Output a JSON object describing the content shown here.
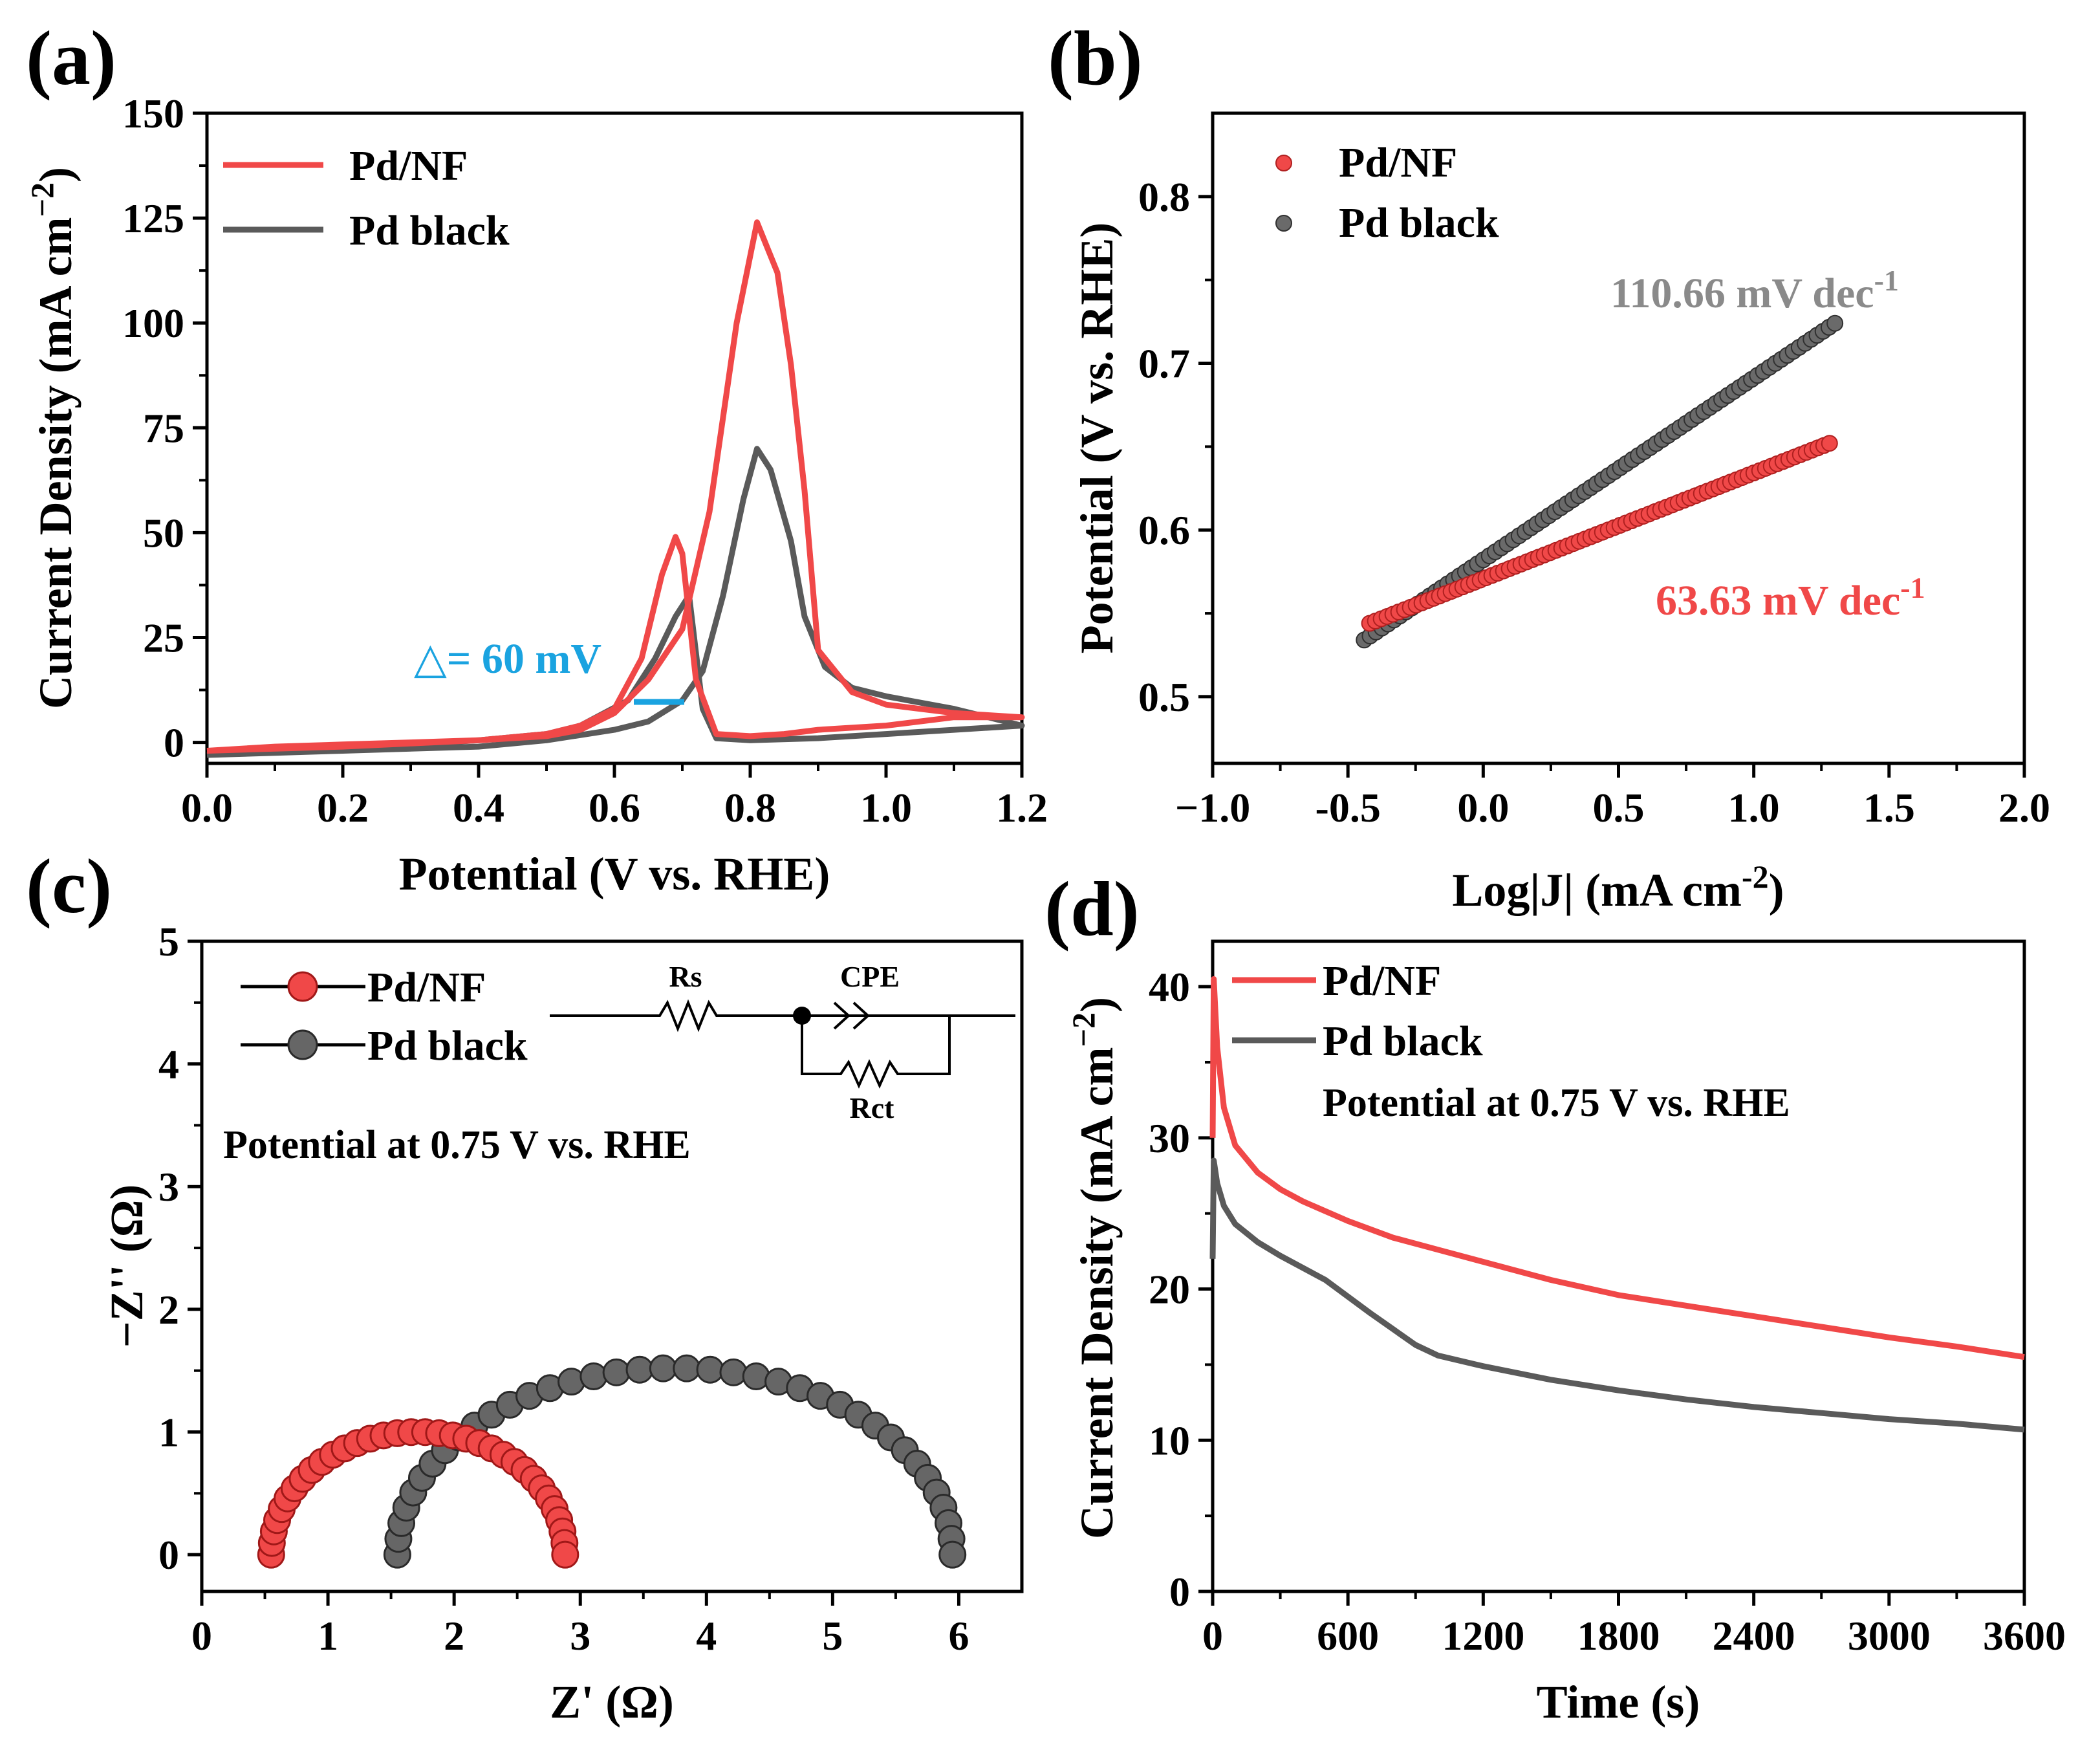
{
  "colors": {
    "pd_nf": "#f04848",
    "pd_black": "#5a5a5a",
    "delta": "#1aa3e0",
    "slope_nf": "#f04848",
    "slope_black": "#8a8a8a"
  },
  "chart_data": [
    {
      "id": "a",
      "type": "line",
      "panel_label": "(a)",
      "xlabel": "Potential (V vs. RHE)",
      "ylabel_main": "Current Density (mA cm",
      "ylabel_sup": "−2",
      "ylabel_close": ")",
      "xlim": [
        0,
        1.2
      ],
      "ylim": [
        -5,
        150
      ],
      "xticks": [
        0,
        0.2,
        0.4,
        0.6,
        0.8,
        1.0,
        1.2
      ],
      "xtick_labels": [
        "0.0",
        "0.2",
        "0.4",
        "0.6",
        "0.8",
        "1.0",
        "1.2"
      ],
      "yticks": [
        0,
        25,
        50,
        75,
        100,
        125,
        150
      ],
      "ytick_labels": [
        "0",
        "25",
        "50",
        "75",
        "100",
        "125",
        "150"
      ],
      "annotation": "△= 60 mV",
      "legend": [
        "Pd/NF",
        "Pd black"
      ],
      "series": [
        {
          "name": "Pd/NF",
          "x": [
            0.0,
            0.1,
            0.2,
            0.3,
            0.4,
            0.5,
            0.55,
            0.6,
            0.65,
            0.7,
            0.74,
            0.78,
            0.81,
            0.84,
            0.86,
            0.88,
            0.9,
            0.95,
            1.0,
            1.1,
            1.2,
            1.1,
            1.0,
            0.9,
            0.85,
            0.8,
            0.75,
            0.72,
            0.7,
            0.69,
            0.67,
            0.64,
            0.6,
            0.55,
            0.5,
            0.4,
            0.2,
            0.0
          ],
          "y": [
            -2,
            -1,
            -0.5,
            0,
            0.5,
            1.5,
            3,
            7,
            15,
            27,
            55,
            100,
            124,
            112,
            90,
            60,
            22,
            12,
            9,
            7,
            6,
            6,
            4,
            3,
            2,
            1.5,
            2,
            15,
            45,
            49,
            40,
            20,
            8,
            4,
            2,
            0.5,
            -1,
            -2
          ]
        },
        {
          "name": "Pd black",
          "x": [
            0.0,
            0.2,
            0.4,
            0.5,
            0.6,
            0.65,
            0.7,
            0.73,
            0.76,
            0.79,
            0.81,
            0.83,
            0.86,
            0.88,
            0.91,
            0.95,
            1.0,
            1.1,
            1.2,
            1.1,
            1.0,
            0.9,
            0.8,
            0.75,
            0.73,
            0.71,
            0.69,
            0.66,
            0.62,
            0.55,
            0.5,
            0.4,
            0.2,
            0.0
          ],
          "y": [
            -3,
            -2,
            -1,
            0.5,
            3,
            5,
            10,
            17,
            35,
            58,
            70,
            65,
            48,
            30,
            18,
            13,
            11,
            8,
            4,
            3,
            2,
            1,
            0.5,
            1,
            8,
            35,
            30,
            20,
            10,
            4,
            2,
            0.5,
            -1.5,
            -3
          ]
        }
      ]
    },
    {
      "id": "b",
      "type": "scatter",
      "panel_label": "(b)",
      "xlabel_main": "Log|J| (mA cm",
      "xlabel_sup": "-2",
      "xlabel_close": ")",
      "ylabel": "Potential (V vs. RHE)",
      "xlim": [
        -1.0,
        2.0
      ],
      "ylim": [
        0.46,
        0.85
      ],
      "xticks": [
        -1.0,
        -0.5,
        0.0,
        0.5,
        1.0,
        1.5,
        2.0
      ],
      "xtick_labels": [
        "−1.0",
        "-0.5",
        "0.0",
        "0.5",
        "1.0",
        "1.5",
        "2.0"
      ],
      "yticks": [
        0.5,
        0.6,
        0.7,
        0.8
      ],
      "ytick_labels": [
        "0.5",
        "0.6",
        "0.7",
        "0.8"
      ],
      "legend": [
        "Pd/NF",
        "Pd black"
      ],
      "series": [
        {
          "name": "Pd/NF",
          "x_start": -0.42,
          "x_end": 1.28,
          "y_start": 0.544,
          "y_end": 0.652,
          "count": 80,
          "slope_label": "63.63 mV dec",
          "slope_sup": "-1"
        },
        {
          "name": "Pd black",
          "x_start": -0.44,
          "x_end": 1.3,
          "y_start": 0.534,
          "y_end": 0.724,
          "count": 80,
          "slope_label": "110.66 mV dec",
          "slope_sup": "-1"
        }
      ]
    },
    {
      "id": "c",
      "type": "scatter",
      "panel_label": "(c)",
      "xlabel": "Z' (Ω)",
      "ylabel": "−Z'' (Ω)",
      "xlim": [
        0,
        6.5
      ],
      "ylim": [
        -0.3,
        5
      ],
      "xticks": [
        0,
        1,
        2,
        3,
        4,
        5,
        6
      ],
      "xtick_labels": [
        "0",
        "1",
        "2",
        "3",
        "4",
        "5",
        "6"
      ],
      "yticks": [
        0,
        1,
        2,
        3,
        4,
        5
      ],
      "ytick_labels": [
        "0",
        "1",
        "2",
        "3",
        "4",
        "5"
      ],
      "annotation": "Potential at 0.75 V vs. RHE",
      "circuit_labels": [
        "Rs",
        "CPE",
        "Rct"
      ],
      "legend": [
        "Pd/NF",
        "Pd black"
      ],
      "series": [
        {
          "name": "Pd/NF",
          "x_start": 0.55,
          "x_end": 2.88,
          "peak": 1.0,
          "count": 34
        },
        {
          "name": "Pd black",
          "x_start": 1.55,
          "x_end": 5.95,
          "peak": 1.52,
          "count": 38
        }
      ]
    },
    {
      "id": "d",
      "type": "line",
      "panel_label": "(d)",
      "xlabel": "Time (s)",
      "ylabel_main": "Current Density (mA cm",
      "ylabel_sup": "−2",
      "ylabel_close": ")",
      "xlim": [
        0,
        3600
      ],
      "ylim": [
        0,
        43
      ],
      "xticks": [
        0,
        600,
        1200,
        1800,
        2400,
        3000,
        3600
      ],
      "xtick_labels": [
        "0",
        "600",
        "1200",
        "1800",
        "2400",
        "3000",
        "3600"
      ],
      "yticks": [
        0,
        10,
        20,
        30,
        40
      ],
      "ytick_labels": [
        "0",
        "10",
        "20",
        "30",
        "40"
      ],
      "annotation": "Potential at 0.75 V vs. RHE",
      "legend": [
        "Pd/NF",
        "Pd black"
      ],
      "series": [
        {
          "name": "Pd/NF",
          "x": [
            0,
            5,
            20,
            50,
            100,
            200,
            300,
            400,
            600,
            800,
            1000,
            1200,
            1500,
            1800,
            2100,
            2400,
            2700,
            3000,
            3300,
            3600
          ],
          "y": [
            30,
            40.5,
            36,
            32,
            29.5,
            27.7,
            26.6,
            25.8,
            24.5,
            23.4,
            22.6,
            21.8,
            20.6,
            19.6,
            18.9,
            18.2,
            17.5,
            16.8,
            16.2,
            15.5
          ]
        },
        {
          "name": "Pd black",
          "x": [
            0,
            5,
            20,
            50,
            100,
            200,
            300,
            500,
            700,
            900,
            1000,
            1200,
            1500,
            1800,
            2100,
            2400,
            2700,
            3000,
            3300,
            3600
          ],
          "y": [
            22,
            28.5,
            27,
            25.5,
            24.3,
            23.1,
            22.2,
            20.6,
            18.4,
            16.3,
            15.6,
            14.9,
            14.0,
            13.3,
            12.7,
            12.2,
            11.8,
            11.4,
            11.1,
            10.7
          ]
        }
      ]
    }
  ]
}
